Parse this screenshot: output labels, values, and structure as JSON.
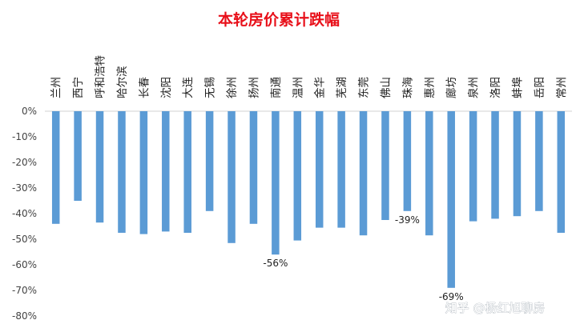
{
  "chart_data": {
    "type": "bar",
    "title": "本轮房价累计跌幅",
    "categories": [
      "兰州",
      "西宁",
      "呼和浩特",
      "哈尔滨",
      "长春",
      "沈阳",
      "大连",
      "无锡",
      "徐州",
      "扬州",
      "南通",
      "温州",
      "金华",
      "芜湖",
      "东莞",
      "佛山",
      "珠海",
      "惠州",
      "廊坊",
      "泉州",
      "洛阳",
      "蚌埠",
      "岳阳",
      "常州"
    ],
    "values": [
      -44,
      -35,
      -43.5,
      -47.5,
      -48,
      -47,
      -47.5,
      -39,
      -51.5,
      -44,
      -56,
      -50.5,
      -45.5,
      -45.5,
      -48.5,
      -42.5,
      -39,
      -48.5,
      -69,
      -43,
      -42,
      -41,
      -39,
      -47.5
    ],
    "data_labels": [
      {
        "index": 10,
        "text": "-56%"
      },
      {
        "index": 16,
        "text": "-39%"
      },
      {
        "index": 18,
        "text": "-69%"
      }
    ],
    "yticks": [
      "0%",
      "-10%",
      "-20%",
      "-30%",
      "-40%",
      "-50%",
      "-60%",
      "-70%",
      "-80%"
    ],
    "ylim": [
      -80,
      0
    ],
    "bar_color": "#5b9bd5",
    "title_color": "#e8101a",
    "grid": false,
    "legend": false
  },
  "watermark": "知乎 @杨红旭聊房"
}
